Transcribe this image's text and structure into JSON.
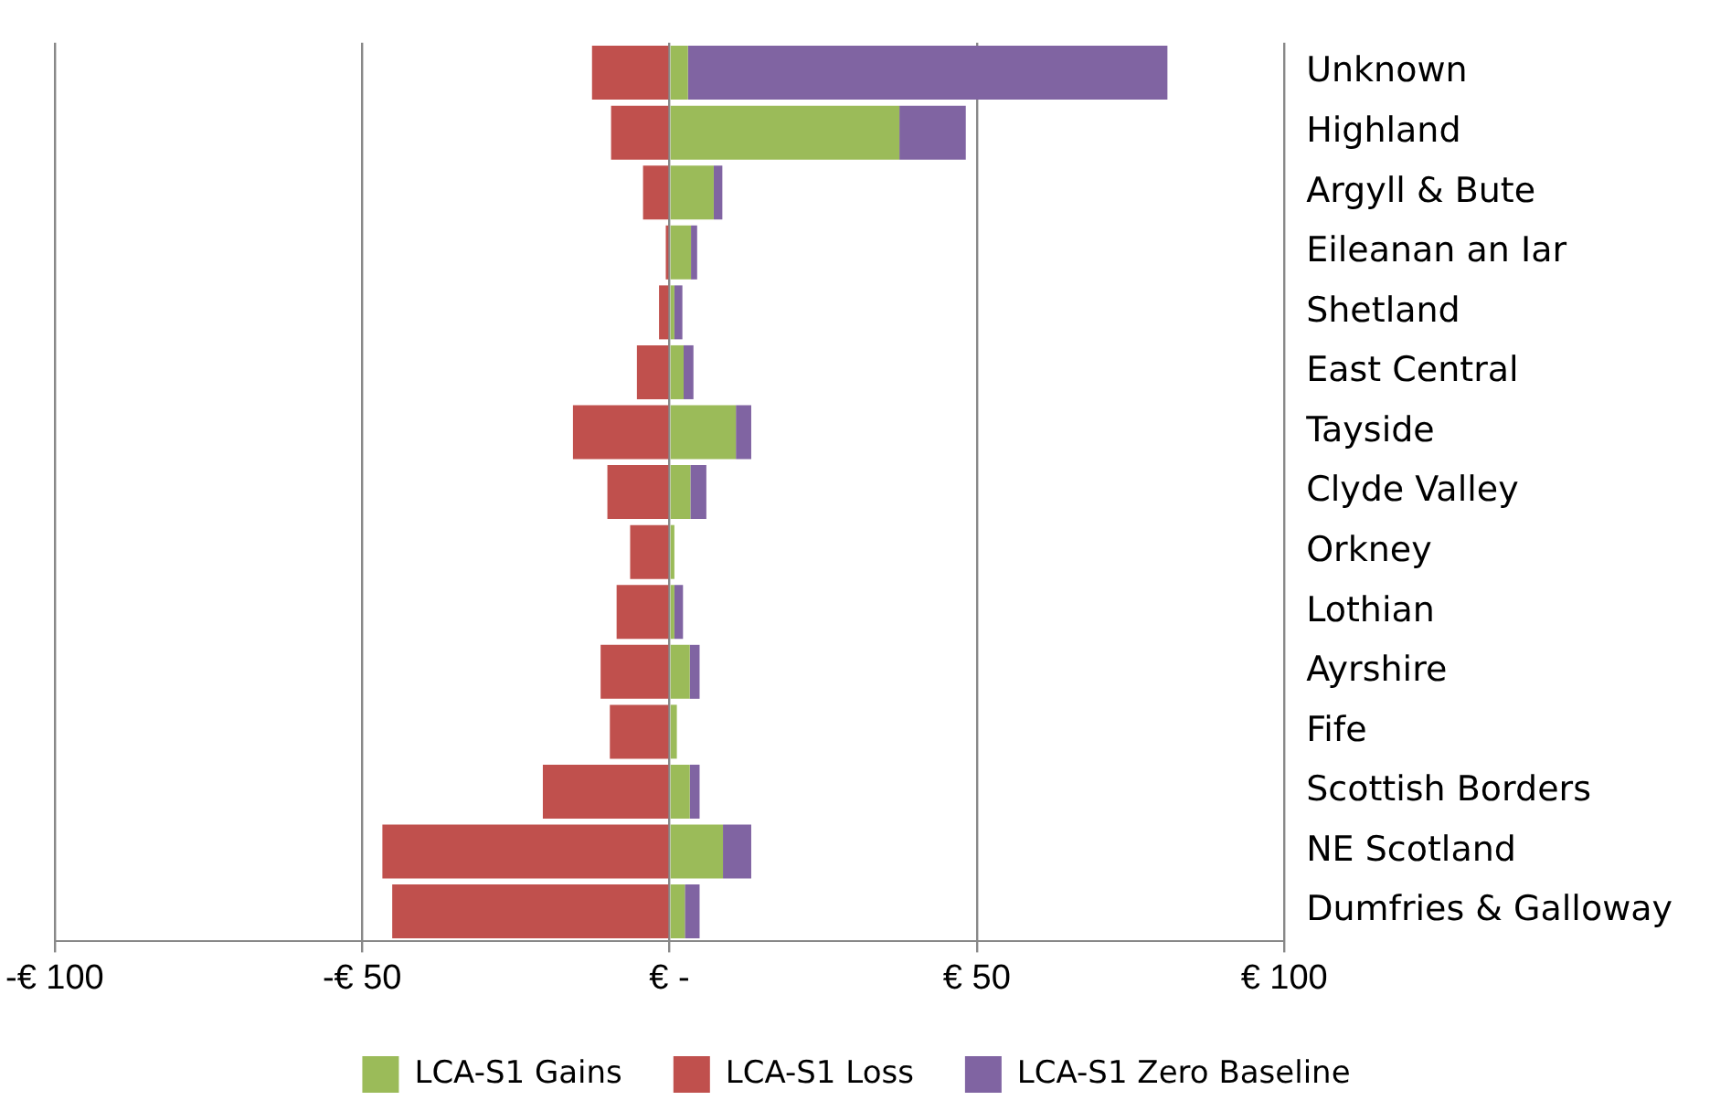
{
  "chart_data": {
    "type": "bar",
    "orientation": "horizontal",
    "stacked": true,
    "categories": [
      "Unknown",
      "Highland",
      "Argyll & Bute",
      "Eileanan an Iar",
      "Shetland",
      "East Central",
      "Tayside",
      "Clyde Valley",
      "Orkney",
      "Lothian",
      "Ayrshire",
      "Fife",
      "Scottish Borders",
      "NE Scotland",
      "Dumfries & Galloway"
    ],
    "series": [
      {
        "name": "LCA-S1 Gains",
        "color": "#9bbb59",
        "values": [
          3,
          37.4,
          7.2,
          3.5,
          0.8,
          2.3,
          10.8,
          3.4,
          0.8,
          0.8,
          3.3,
          1.2,
          3.3,
          8.7,
          2.5
        ]
      },
      {
        "name": "LCA-S1 Loss",
        "color": "#c0504d",
        "values": [
          -12.6,
          -9.5,
          -4.3,
          -0.6,
          -1.7,
          -5.3,
          -15.7,
          -10.1,
          -6.4,
          -8.6,
          -11.2,
          -9.7,
          -20.6,
          -46.7,
          -45.1
        ]
      },
      {
        "name": "LCA-S1 Zero Baseline",
        "color": "#8064a2",
        "values": [
          78,
          10.8,
          1.4,
          1,
          1.3,
          1.6,
          2.5,
          2.6,
          0,
          1.4,
          1.6,
          0,
          1.6,
          4.6,
          2.4
        ]
      }
    ],
    "xlim": [
      -100,
      100
    ],
    "xticks": [
      {
        "value": -100,
        "label": "-€ 100"
      },
      {
        "value": -50,
        "label": "-€ 50"
      },
      {
        "value": 0,
        "label": "€ -"
      },
      {
        "value": 50,
        "label": "€ 50"
      },
      {
        "value": 100,
        "label": "€ 100"
      }
    ],
    "grid": "x",
    "legend": "bottom"
  }
}
